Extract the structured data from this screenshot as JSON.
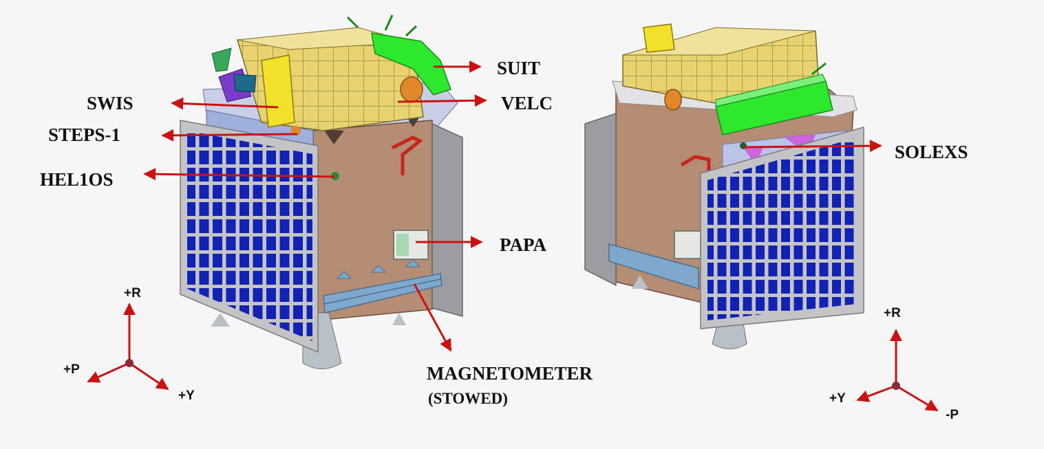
{
  "colors": {
    "background": "#f6f6f6",
    "body": "#b58c74",
    "body_dark": "#9a715c",
    "panel_frame": "#c4c4c6",
    "solar_cell": "#1020b0",
    "gold_instrument": "#e6cf6a",
    "green_instrument": "#2ee82e",
    "yellow_instrument": "#f2e02a",
    "leader_arrow": "#cc1111",
    "side_panel": "#9a9a9e",
    "boom_blue": "#7fa9cc"
  },
  "labels": {
    "suit": "SUIT",
    "velc": "VELC",
    "swis": "SWIS",
    "steps1": "STEPS-1",
    "helios": "HEL1OS",
    "papa": "PAPA",
    "magnetometer": "MAGNETOMETER",
    "stowed": "(STOWED)",
    "solexs": "SOLEXS"
  },
  "axes_left": {
    "r": "+R",
    "p": "+P",
    "y": "+Y"
  },
  "axes_right": {
    "r": "+R",
    "y": "+Y",
    "p": "-P"
  }
}
